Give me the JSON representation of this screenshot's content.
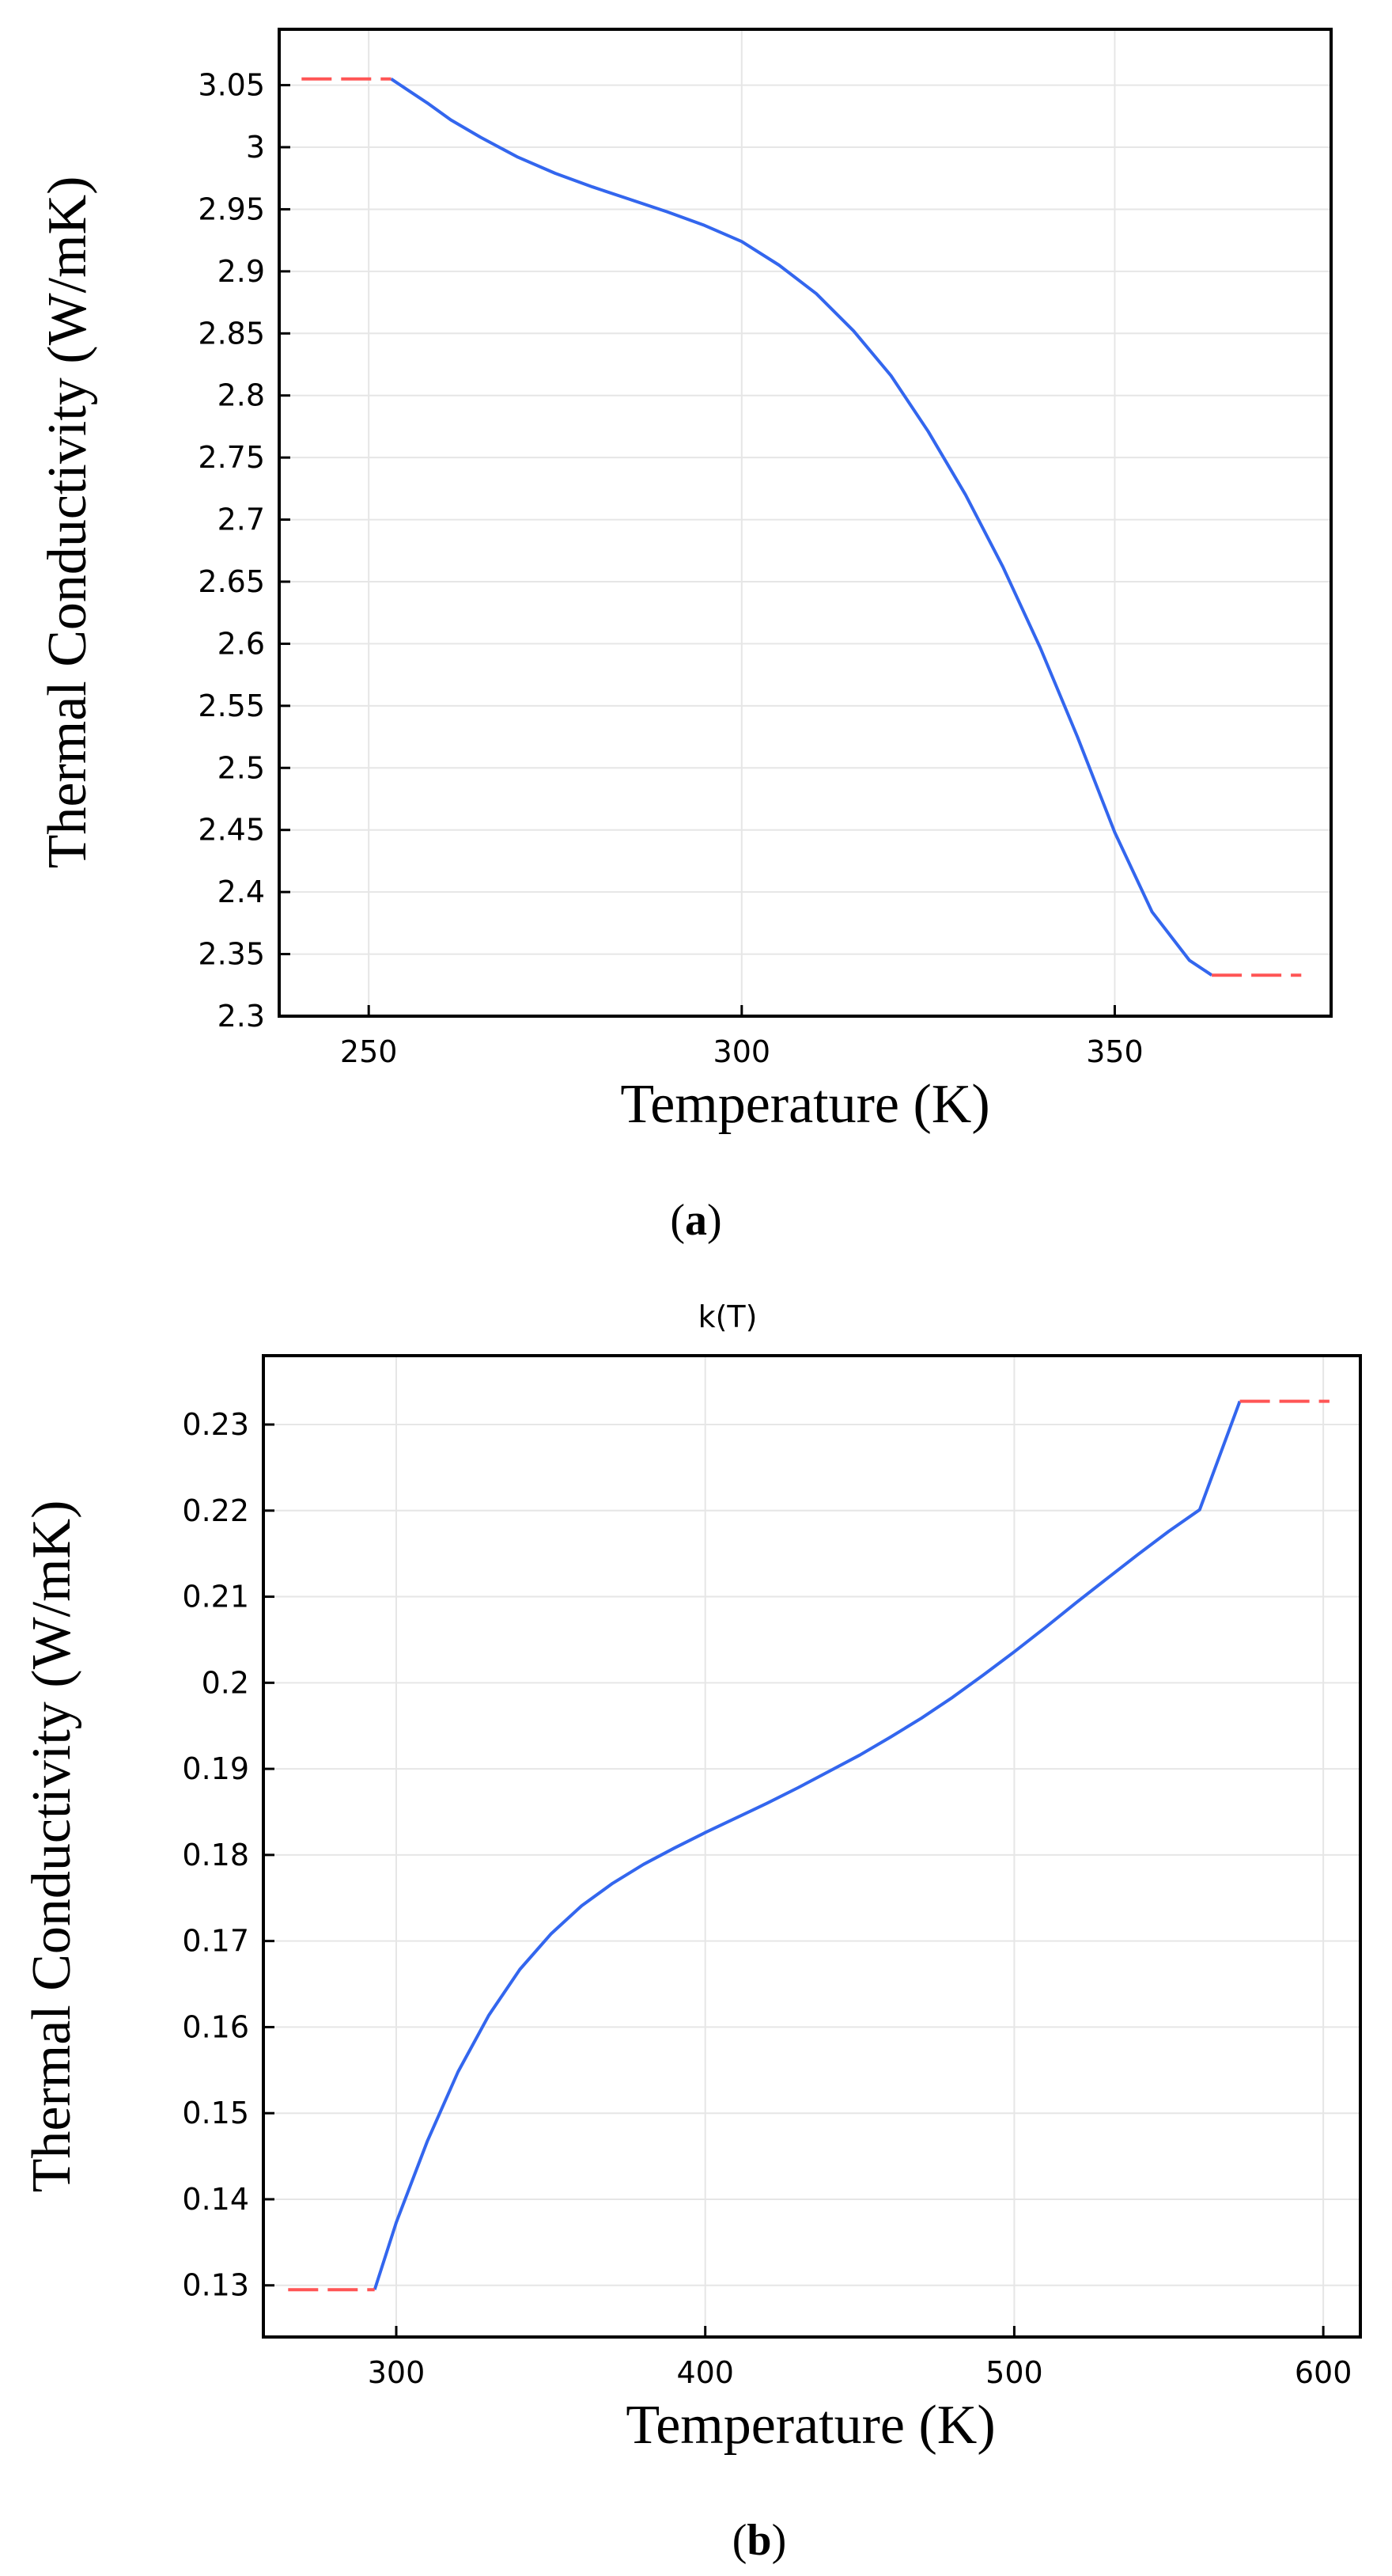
{
  "chart_data": [
    {
      "type": "line",
      "panel_label": "a",
      "title": "",
      "xlabel": "Temperature (K)",
      "ylabel": "Thermal Conductivity (W/mK)",
      "xlim": [
        238,
        379
      ],
      "ylim": [
        2.3,
        3.095
      ],
      "xticks": [
        250,
        300,
        350
      ],
      "xtick_labels": [
        "250",
        "300",
        "350"
      ],
      "yticks": [
        2.3,
        2.35,
        2.4,
        2.45,
        2.5,
        2.55,
        2.6,
        2.65,
        2.7,
        2.75,
        2.8,
        2.85,
        2.9,
        2.95,
        3.0,
        3.05
      ],
      "ytick_labels": [
        "2.3",
        "2.35",
        "2.4",
        "2.45",
        "2.5",
        "2.55",
        "2.6",
        "2.65",
        "2.7",
        "2.75",
        "2.8",
        "2.85",
        "2.9",
        "2.95",
        "3",
        "3.05"
      ],
      "grid": true,
      "series": [
        {
          "name": "k(T)",
          "color": "#3366ee",
          "style": "solid",
          "x": [
            253,
            255,
            258,
            261,
            265,
            270,
            275,
            280,
            285,
            290,
            295,
            300,
            305,
            310,
            315,
            320,
            325,
            330,
            335,
            340,
            345,
            350,
            355,
            360,
            363
          ],
          "y": [
            3.055,
            3.047,
            3.035,
            3.022,
            3.008,
            2.992,
            2.979,
            2.968,
            2.958,
            2.948,
            2.937,
            2.924,
            2.905,
            2.882,
            2.852,
            2.816,
            2.771,
            2.72,
            2.662,
            2.597,
            2.525,
            2.448,
            2.384,
            2.345,
            2.333
          ]
        },
        {
          "name": "extrapolation-low",
          "color": "#ff5555",
          "style": "dashed",
          "x": [
            241,
            253
          ],
          "y": [
            3.055,
            3.055
          ]
        },
        {
          "name": "extrapolation-high",
          "color": "#ff5555",
          "style": "dashed",
          "x": [
            363,
            375
          ],
          "y": [
            2.333,
            2.333
          ]
        }
      ]
    },
    {
      "type": "line",
      "panel_label": "b",
      "title": "k(T)",
      "xlabel": "Temperature (K)",
      "ylabel": "Thermal Conductivity (W/mK)",
      "xlim": [
        257,
        612
      ],
      "ylim": [
        0.124,
        0.238
      ],
      "xticks": [
        300,
        400,
        500,
        600
      ],
      "xtick_labels": [
        "300",
        "400",
        "500",
        "600"
      ],
      "yticks": [
        0.13,
        0.14,
        0.15,
        0.16,
        0.17,
        0.18,
        0.19,
        0.2,
        0.21,
        0.22,
        0.23
      ],
      "ytick_labels": [
        "0.13",
        "0.14",
        "0.15",
        "0.16",
        "0.17",
        "0.18",
        "0.19",
        "0.2",
        "0.21",
        "0.22",
        "0.23"
      ],
      "grid": true,
      "series": [
        {
          "name": "k(T)",
          "color": "#3366ee",
          "style": "solid",
          "x": [
            293,
            300,
            310,
            320,
            330,
            340,
            350,
            360,
            370,
            380,
            390,
            400,
            410,
            420,
            430,
            440,
            450,
            460,
            470,
            480,
            490,
            500,
            510,
            520,
            530,
            540,
            550,
            560,
            573
          ],
          "y": [
            0.1295,
            0.1373,
            0.1467,
            0.1548,
            0.1614,
            0.1667,
            0.1708,
            0.1741,
            0.1767,
            0.1789,
            0.1808,
            0.1826,
            0.1843,
            0.186,
            0.1878,
            0.1897,
            0.1916,
            0.1937,
            0.1959,
            0.1983,
            0.2009,
            0.2036,
            0.2064,
            0.2093,
            0.2121,
            0.2149,
            0.2176,
            0.2201,
            0.2327
          ]
        },
        {
          "name": "extrapolation-low",
          "color": "#ff5555",
          "style": "dashed",
          "x": [
            265,
            293
          ],
          "y": [
            0.1295,
            0.1295
          ]
        },
        {
          "name": "extrapolation-high",
          "color": "#ff5555",
          "style": "dashed",
          "x": [
            573,
            602
          ],
          "y": [
            0.2327,
            0.2327
          ]
        }
      ]
    }
  ]
}
